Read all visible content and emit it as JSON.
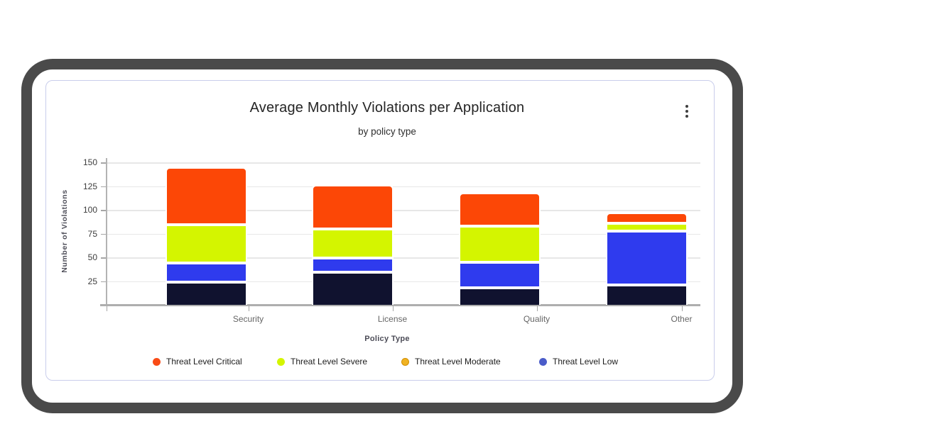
{
  "card": {
    "title": "Average Monthly Violations per Application",
    "subtitle": "by policy type",
    "menu_icon": "kebab-menu-icon"
  },
  "chart_data": {
    "type": "bar",
    "stacked": true,
    "title": "Average Monthly Violations per Application",
    "subtitle": "by policy type",
    "xlabel": "Policy Type",
    "ylabel": "Number of Violations",
    "categories": [
      "Security",
      "License",
      "Quality",
      "Other"
    ],
    "yticks": [
      25,
      50,
      75,
      100,
      125,
      150
    ],
    "ylim": [
      0,
      155
    ],
    "grid": true,
    "legend_position": "bottom",
    "series": [
      {
        "key": "base",
        "name": "",
        "in_legend": false,
        "color": "#10122f",
        "values": [
          24,
          34,
          18,
          21
        ]
      },
      {
        "key": "low",
        "name": "Threat Level Low",
        "in_legend": true,
        "color": "#2f3bee",
        "values": [
          20,
          15,
          27,
          57
        ]
      },
      {
        "key": "moderate",
        "name": "Threat Level Moderate",
        "in_legend": true,
        "color": "#f0b323",
        "values": [
          0,
          0,
          0,
          0
        ]
      },
      {
        "key": "severe",
        "name": "Threat Level Severe",
        "in_legend": true,
        "color": "#d4f500",
        "values": [
          40,
          31,
          38,
          8
        ]
      },
      {
        "key": "critical",
        "name": "Threat Level Critical",
        "in_legend": true,
        "color": "#fc4706",
        "values": [
          61,
          46,
          35,
          11
        ]
      }
    ],
    "legend": [
      {
        "key": "critical",
        "label": "Threat Level Critical",
        "color": "#f94b16"
      },
      {
        "key": "severe",
        "label": "Threat Level Severe",
        "color": "#d4f500"
      },
      {
        "key": "moderate",
        "label": "Threat Level Moderate",
        "color": "#f0b323",
        "ring": "#d28e00"
      },
      {
        "key": "low",
        "label": "Threat Level Low",
        "color": "#4a5cc9"
      }
    ]
  }
}
